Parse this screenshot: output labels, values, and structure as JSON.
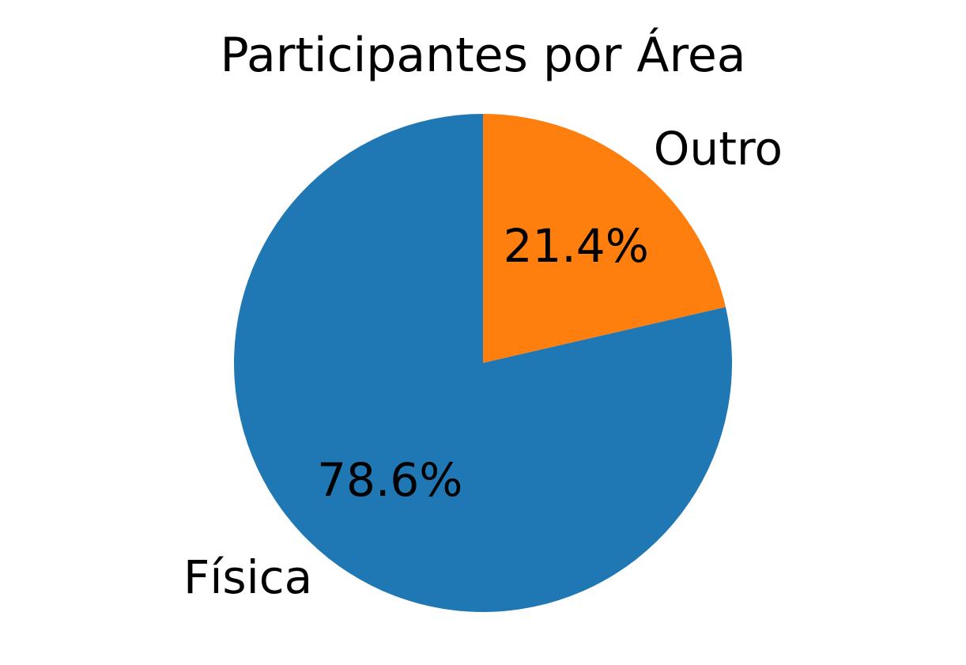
{
  "chart_data": {
    "type": "pie",
    "title": "Participantes por Área",
    "slices": [
      {
        "label": "Outro",
        "value": 21.4,
        "pct_label": "21.4%",
        "color": "#ff7f0e"
      },
      {
        "label": "Física",
        "value": 78.6,
        "pct_label": "78.6%",
        "color": "#1f77b4"
      }
    ],
    "start_angle_deg": 90,
    "direction": "clockwise"
  }
}
